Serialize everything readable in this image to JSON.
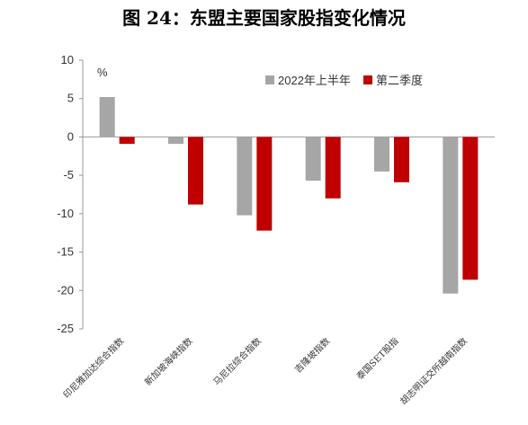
{
  "title": "图 24：东盟主要国家股指变化情况",
  "chart_data": {
    "type": "bar",
    "unit_label": "%",
    "categories": [
      "印尼雅加达综合指数",
      "新加坡海峡指数",
      "马尼拉综合指数",
      "吉隆坡指数",
      "泰国SET股指",
      "胡志明证交所越南指数"
    ],
    "series": [
      {
        "name": "2022年上半年",
        "color": "#a6a6a6",
        "values": [
          5.2,
          -0.9,
          -10.2,
          -5.7,
          -4.5,
          -20.4
        ]
      },
      {
        "name": "第二季度",
        "color": "#c00000",
        "values": [
          -0.9,
          -8.8,
          -12.2,
          -8.0,
          -5.9,
          -18.6
        ]
      }
    ],
    "ylim": [
      -25,
      10
    ],
    "yticks": [
      10,
      5,
      0,
      -5,
      -10,
      -15,
      -20,
      -25
    ],
    "legend_position": "top-right",
    "grid": false
  }
}
